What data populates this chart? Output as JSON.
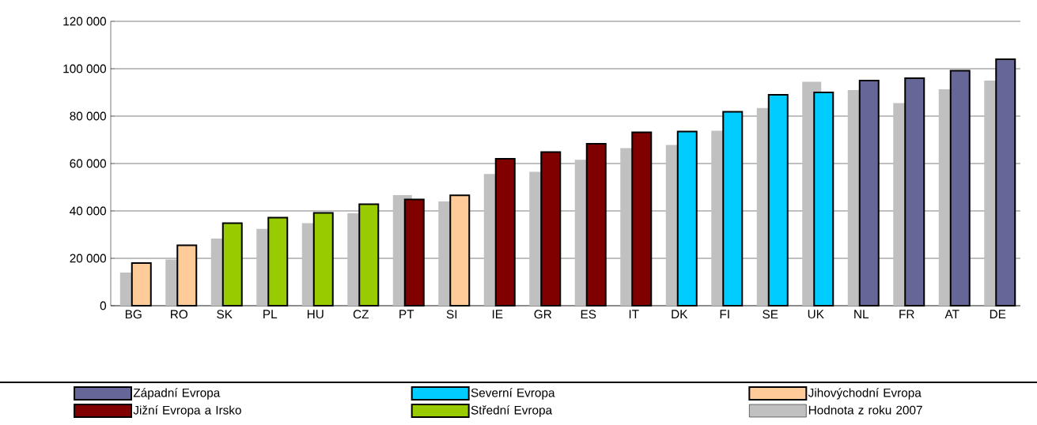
{
  "chart_data": {
    "type": "bar",
    "categories": [
      "BG",
      "RO",
      "SK",
      "PL",
      "HU",
      "CZ",
      "PT",
      "SI",
      "IE",
      "GR",
      "ES",
      "IT",
      "DK",
      "FI",
      "SE",
      "UK",
      "NL",
      "FR",
      "AT",
      "DE"
    ],
    "series": [
      {
        "name": "Západní Evropa",
        "color": "#666699",
        "values": [
          null,
          null,
          null,
          null,
          null,
          null,
          null,
          null,
          null,
          null,
          null,
          null,
          null,
          null,
          null,
          null,
          95000,
          96000,
          99200,
          104000
        ]
      },
      {
        "name": "Severní Evropa",
        "color": "#00ccff",
        "values": [
          null,
          null,
          null,
          null,
          null,
          null,
          null,
          null,
          null,
          null,
          null,
          null,
          73500,
          81800,
          89000,
          90000,
          null,
          null,
          null,
          null
        ]
      },
      {
        "name": "Jihovýchodní Evropa",
        "color": "#ffcc99",
        "values": [
          18000,
          25500,
          null,
          null,
          null,
          null,
          null,
          46600,
          null,
          null,
          null,
          null,
          null,
          null,
          null,
          null,
          null,
          null,
          null,
          null
        ]
      },
      {
        "name": "Jižní Evropa a Irsko",
        "color": "#800000",
        "values": [
          null,
          null,
          null,
          null,
          null,
          null,
          44800,
          null,
          62000,
          64800,
          68300,
          73200,
          null,
          null,
          null,
          null,
          null,
          null,
          null,
          null
        ]
      },
      {
        "name": "Střední Evropa",
        "color": "#99cc00",
        "values": [
          null,
          null,
          34800,
          37200,
          39200,
          42800,
          null,
          null,
          null,
          null,
          null,
          null,
          null,
          null,
          null,
          null,
          null,
          null,
          null,
          null
        ]
      },
      {
        "name": "Hodnota z roku 2007",
        "color": "#c0c0c0",
        "values": [
          14000,
          19500,
          28300,
          32400,
          34800,
          39000,
          46700,
          44000,
          55600,
          56500,
          61600,
          66500,
          67800,
          73800,
          83400,
          94500,
          91000,
          85500,
          91300,
          95000
        ]
      }
    ],
    "ylim": [
      0,
      120000
    ],
    "yticks": [
      0,
      {
        "value": 20000,
        "label": "20 000"
      },
      {
        "value": 40000,
        "label": "40 000"
      },
      {
        "value": 60000,
        "label": "60 000"
      },
      {
        "value": 80000,
        "label": "80 000"
      },
      {
        "value": 100000,
        "label": "100 000"
      },
      {
        "value": 120000,
        "label": "120 000"
      }
    ],
    "grid": "y",
    "legend": "bottom"
  }
}
